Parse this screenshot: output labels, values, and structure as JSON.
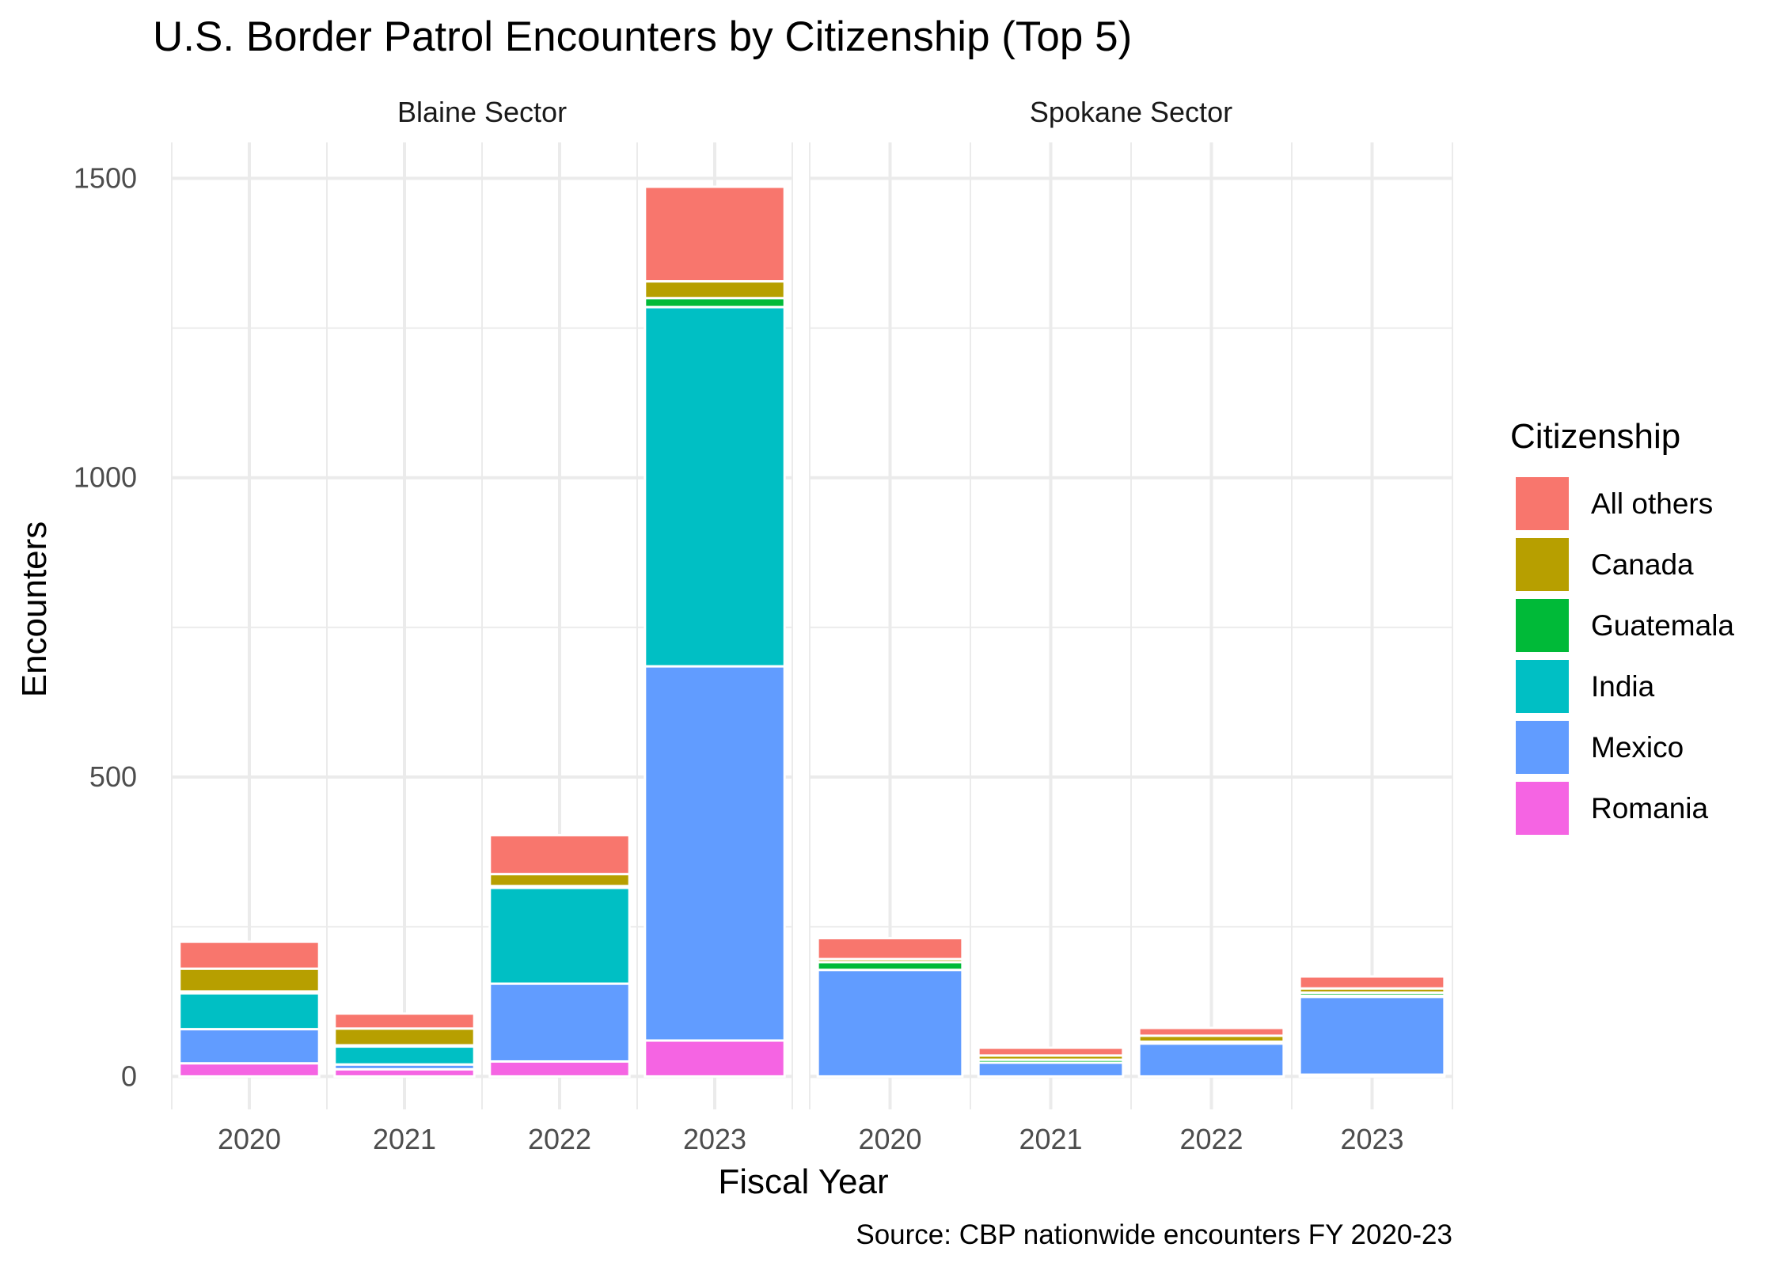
{
  "chart_data": {
    "type": "bar",
    "stacked": true,
    "title": "U.S. Border Patrol Encounters by Citizenship (Top 5)",
    "xlabel": "Fiscal Year",
    "ylabel": "Encounters",
    "caption": "Source: CBP nationwide encounters FY 2020-23",
    "legend_title": "Citizenship",
    "legend_position": "right",
    "grid": true,
    "ylim": [
      -55,
      1560
    ],
    "y_ticks": [
      0,
      500,
      1000,
      1500
    ],
    "categories": [
      "2020",
      "2021",
      "2022",
      "2023"
    ],
    "stack_order_bottom_to_top": [
      "Romania",
      "Mexico",
      "India",
      "Guatemala",
      "Canada",
      "All others"
    ],
    "legend_order": [
      "All others",
      "Canada",
      "Guatemala",
      "India",
      "Mexico",
      "Romania"
    ],
    "colors": {
      "All others": "#F8766D",
      "Canada": "#B79F00",
      "Guatemala": "#00BA38",
      "India": "#00BFC4",
      "Mexico": "#619CFF",
      "Romania": "#F564E3"
    },
    "panels": [
      {
        "name": "Blaine Sector",
        "series": [
          {
            "name": "Romania",
            "values": [
              22,
              12,
              25,
              60
            ]
          },
          {
            "name": "Mexico",
            "values": [
              57,
              8,
              130,
              625
            ]
          },
          {
            "name": "India",
            "values": [
              60,
              30,
              160,
              600
            ]
          },
          {
            "name": "Guatemala",
            "values": [
              3,
              2,
              3,
              15
            ]
          },
          {
            "name": "Canada",
            "values": [
              38,
              28,
              20,
              28
            ]
          },
          {
            "name": "All others",
            "values": [
              45,
              25,
              65,
              158
            ]
          }
        ]
      },
      {
        "name": "Spokane Sector",
        "series": [
          {
            "name": "Romania",
            "values": [
              0,
              0,
              0,
              3
            ]
          },
          {
            "name": "Mexico",
            "values": [
              178,
              23,
              55,
              130
            ]
          },
          {
            "name": "India",
            "values": [
              0,
              0,
              0,
              2
            ]
          },
          {
            "name": "Guatemala",
            "values": [
              13,
              5,
              3,
              5
            ]
          },
          {
            "name": "Canada",
            "values": [
              5,
              7,
              10,
              7
            ]
          },
          {
            "name": "All others",
            "values": [
              35,
              13,
              13,
              20
            ]
          }
        ]
      }
    ]
  }
}
